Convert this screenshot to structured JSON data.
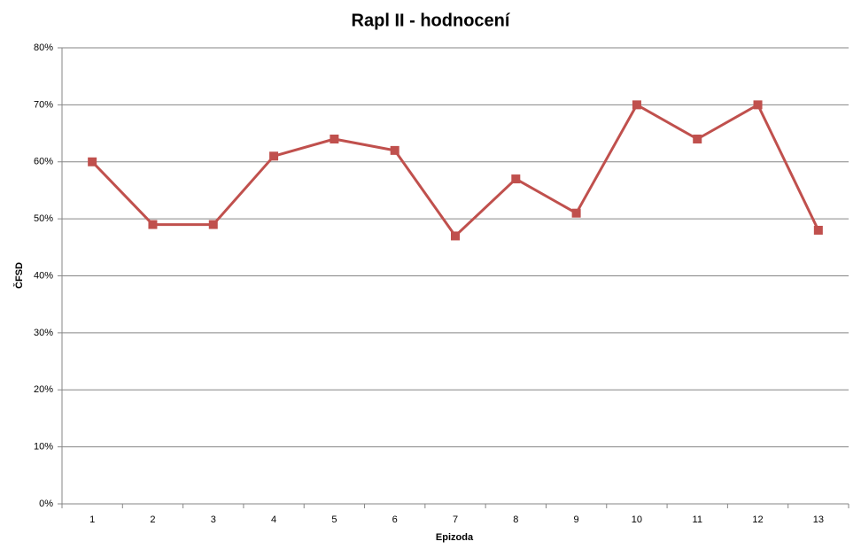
{
  "chart_data": {
    "type": "line",
    "title": "Rapl II - hodnocení",
    "x_label": "Epizoda",
    "y_label": "ČFSD",
    "categories": [
      "1",
      "2",
      "3",
      "4",
      "5",
      "6",
      "7",
      "8",
      "9",
      "10",
      "11",
      "12",
      "13"
    ],
    "series": [
      {
        "name": "ČFSD",
        "color": "#c0504d",
        "values": [
          60,
          49,
          49,
          61,
          64,
          62,
          47,
          57,
          51,
          70,
          64,
          70,
          48
        ]
      }
    ],
    "ylim": [
      0,
      80
    ],
    "yticks": [
      {
        "value": 0,
        "label": "0%"
      },
      {
        "value": 10,
        "label": "10%"
      },
      {
        "value": 20,
        "label": "20%"
      },
      {
        "value": 30,
        "label": "30%"
      },
      {
        "value": 40,
        "label": "40%"
      },
      {
        "value": 50,
        "label": "50%"
      },
      {
        "value": 60,
        "label": "60%"
      },
      {
        "value": 70,
        "label": "70%"
      },
      {
        "value": 80,
        "label": "80%"
      }
    ],
    "grid": true
  }
}
